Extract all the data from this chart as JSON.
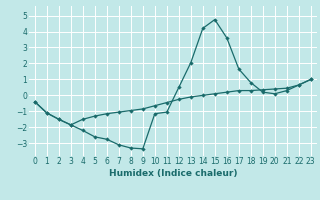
{
  "xlabel": "Humidex (Indice chaleur)",
  "xlim": [
    -0.5,
    23.5
  ],
  "ylim": [
    -3.8,
    5.6
  ],
  "yticks": [
    -3,
    -2,
    -1,
    0,
    1,
    2,
    3,
    4,
    5
  ],
  "xticks": [
    0,
    1,
    2,
    3,
    4,
    5,
    6,
    7,
    8,
    9,
    10,
    11,
    12,
    13,
    14,
    15,
    16,
    17,
    18,
    19,
    20,
    21,
    22,
    23
  ],
  "bg_color": "#c2e8e8",
  "line_color": "#1a6b6b",
  "grid_color": "#ffffff",
  "line1_x": [
    0,
    1,
    2,
    3,
    4,
    5,
    6,
    7,
    8,
    9,
    10,
    11,
    12,
    13,
    14,
    15,
    16,
    17,
    18,
    19,
    20,
    21,
    22,
    23
  ],
  "line1_y": [
    -0.4,
    -1.1,
    -1.5,
    -1.85,
    -2.2,
    -2.6,
    -2.75,
    -3.1,
    -3.3,
    -3.35,
    -1.15,
    -1.05,
    0.5,
    2.05,
    4.2,
    4.75,
    3.6,
    1.65,
    0.8,
    0.2,
    0.1,
    0.3,
    0.65,
    1.0
  ],
  "line2_x": [
    0,
    1,
    2,
    3,
    4,
    5,
    6,
    7,
    8,
    9,
    10,
    11,
    12,
    13,
    14,
    15,
    16,
    17,
    18,
    19,
    20,
    21,
    22,
    23
  ],
  "line2_y": [
    -0.4,
    -1.1,
    -1.5,
    -1.85,
    -1.5,
    -1.3,
    -1.15,
    -1.05,
    -0.95,
    -0.85,
    -0.65,
    -0.45,
    -0.25,
    -0.1,
    0.0,
    0.1,
    0.2,
    0.3,
    0.3,
    0.35,
    0.4,
    0.45,
    0.65,
    1.0
  ],
  "tick_fontsize": 5.5,
  "xlabel_fontsize": 6.5,
  "marker_size": 2.2,
  "line_width": 0.9
}
